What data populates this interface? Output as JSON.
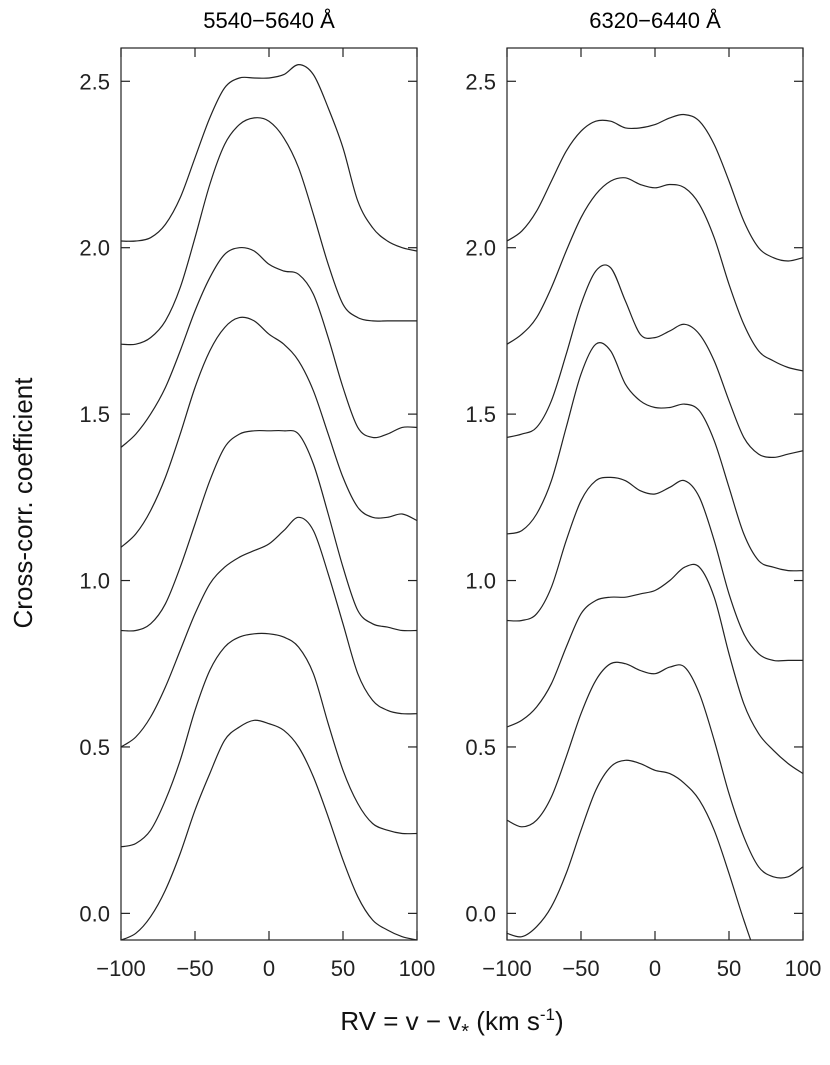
{
  "chart_data": [
    {
      "type": "line",
      "title": "5540−5640 Å",
      "xlabel": "RV = v − v",
      "xlabel_subscript": "*",
      "xlabel_unit_pre": " (km s",
      "xlabel_unit_exp": "-1",
      "xlabel_unit_post": ")",
      "ylabel": "Cross-corr. coefficient",
      "xlim": [
        -100,
        100
      ],
      "ylim": [
        -0.08,
        2.6
      ],
      "xticks": [
        -100,
        -50,
        0,
        50,
        100
      ],
      "xtick_labels": [
        "−100",
        "−50",
        "0",
        "50",
        "100"
      ],
      "yticks": [
        0.0,
        0.5,
        1.0,
        1.5,
        2.0,
        2.5
      ],
      "ytick_labels": [
        "0.0",
        "0.5",
        "1.0",
        "1.5",
        "2.0",
        "2.5"
      ],
      "grid": false,
      "series": [
        {
          "x": [
            -100,
            -90,
            -80,
            -70,
            -60,
            -50,
            -40,
            -30,
            -20,
            -10,
            0,
            10,
            20,
            30,
            40,
            50,
            60,
            70,
            80,
            90,
            100
          ],
          "y": [
            -0.08,
            -0.06,
            -0.01,
            0.07,
            0.18,
            0.31,
            0.42,
            0.52,
            0.56,
            0.58,
            0.57,
            0.55,
            0.5,
            0.41,
            0.29,
            0.16,
            0.05,
            -0.02,
            -0.05,
            -0.07,
            -0.08
          ]
        },
        {
          "x": [
            -100,
            -90,
            -80,
            -70,
            -60,
            -50,
            -40,
            -30,
            -20,
            -10,
            0,
            10,
            20,
            30,
            40,
            50,
            60,
            70,
            80,
            90,
            100
          ],
          "y": [
            0.2,
            0.21,
            0.25,
            0.34,
            0.46,
            0.61,
            0.73,
            0.8,
            0.83,
            0.84,
            0.84,
            0.83,
            0.8,
            0.72,
            0.57,
            0.43,
            0.33,
            0.27,
            0.25,
            0.24,
            0.24
          ]
        },
        {
          "x": [
            -100,
            -90,
            -80,
            -70,
            -60,
            -50,
            -40,
            -30,
            -20,
            -10,
            0,
            10,
            20,
            30,
            40,
            50,
            60,
            70,
            80,
            90,
            100
          ],
          "y": [
            0.5,
            0.53,
            0.59,
            0.68,
            0.79,
            0.9,
            0.99,
            1.04,
            1.07,
            1.09,
            1.11,
            1.15,
            1.19,
            1.15,
            1.02,
            0.87,
            0.72,
            0.64,
            0.61,
            0.6,
            0.6
          ]
        },
        {
          "x": [
            -100,
            -90,
            -80,
            -70,
            -60,
            -50,
            -40,
            -30,
            -20,
            -10,
            0,
            10,
            20,
            30,
            40,
            50,
            60,
            70,
            80,
            90,
            100
          ],
          "y": [
            0.85,
            0.85,
            0.87,
            0.93,
            1.04,
            1.17,
            1.3,
            1.4,
            1.44,
            1.45,
            1.45,
            1.45,
            1.44,
            1.35,
            1.2,
            1.04,
            0.91,
            0.87,
            0.86,
            0.85,
            0.85
          ]
        },
        {
          "x": [
            -100,
            -90,
            -80,
            -70,
            -60,
            -50,
            -40,
            -30,
            -20,
            -10,
            0,
            10,
            20,
            30,
            40,
            50,
            60,
            70,
            80,
            90,
            100
          ],
          "y": [
            1.1,
            1.14,
            1.21,
            1.31,
            1.44,
            1.58,
            1.69,
            1.76,
            1.79,
            1.78,
            1.74,
            1.71,
            1.66,
            1.57,
            1.44,
            1.31,
            1.22,
            1.19,
            1.19,
            1.2,
            1.18
          ]
        },
        {
          "x": [
            -100,
            -90,
            -80,
            -70,
            -60,
            -50,
            -40,
            -30,
            -20,
            -10,
            0,
            10,
            20,
            30,
            40,
            50,
            60,
            70,
            80,
            90,
            100
          ],
          "y": [
            1.4,
            1.44,
            1.5,
            1.58,
            1.69,
            1.81,
            1.91,
            1.98,
            2.0,
            1.99,
            1.95,
            1.93,
            1.92,
            1.86,
            1.73,
            1.58,
            1.46,
            1.43,
            1.44,
            1.46,
            1.46
          ]
        },
        {
          "x": [
            -100,
            -90,
            -80,
            -70,
            -60,
            -50,
            -40,
            -30,
            -20,
            -10,
            0,
            10,
            20,
            30,
            40,
            50,
            60,
            70,
            80,
            90,
            100
          ],
          "y": [
            1.71,
            1.71,
            1.73,
            1.78,
            1.88,
            2.03,
            2.19,
            2.31,
            2.37,
            2.39,
            2.38,
            2.33,
            2.24,
            2.1,
            1.95,
            1.83,
            1.79,
            1.78,
            1.78,
            1.78,
            1.78
          ]
        },
        {
          "x": [
            -100,
            -90,
            -80,
            -70,
            -60,
            -50,
            -40,
            -30,
            -20,
            -10,
            0,
            10,
            20,
            30,
            40,
            50,
            60,
            70,
            80,
            90,
            100
          ],
          "y": [
            2.02,
            2.02,
            2.03,
            2.07,
            2.15,
            2.27,
            2.39,
            2.48,
            2.51,
            2.51,
            2.51,
            2.52,
            2.55,
            2.52,
            2.42,
            2.3,
            2.14,
            2.06,
            2.02,
            2.0,
            1.99
          ]
        }
      ]
    },
    {
      "type": "line",
      "title": "6320−6440 Å",
      "xlim": [
        -100,
        100
      ],
      "ylim": [
        -0.08,
        2.6
      ],
      "xticks": [
        -100,
        -50,
        0,
        50,
        100
      ],
      "xtick_labels": [
        "−100",
        "−50",
        "0",
        "50",
        "100"
      ],
      "yticks": [
        0.0,
        0.5,
        1.0,
        1.5,
        2.0,
        2.5
      ],
      "ytick_labels": [
        "0.0",
        "0.5",
        "1.0",
        "1.5",
        "2.0",
        "2.5"
      ],
      "grid": false,
      "series": [
        {
          "x": [
            -100,
            -90,
            -80,
            -70,
            -60,
            -50,
            -40,
            -30,
            -20,
            -10,
            0,
            10,
            20,
            30,
            40,
            50,
            60,
            70,
            80
          ],
          "y": [
            -0.06,
            -0.07,
            -0.04,
            0.02,
            0.12,
            0.25,
            0.37,
            0.44,
            0.46,
            0.45,
            0.43,
            0.42,
            0.39,
            0.34,
            0.25,
            0.12,
            -0.02,
            -0.14,
            -0.2
          ]
        },
        {
          "x": [
            -100,
            -90,
            -80,
            -70,
            -60,
            -50,
            -40,
            -30,
            -20,
            -10,
            0,
            10,
            20,
            30,
            40,
            50,
            60,
            70,
            80,
            90,
            100
          ],
          "y": [
            0.28,
            0.26,
            0.28,
            0.35,
            0.47,
            0.6,
            0.7,
            0.75,
            0.75,
            0.73,
            0.72,
            0.74,
            0.74,
            0.66,
            0.52,
            0.36,
            0.23,
            0.14,
            0.11,
            0.11,
            0.14
          ]
        },
        {
          "x": [
            -100,
            -90,
            -80,
            -70,
            -60,
            -50,
            -40,
            -30,
            -20,
            -10,
            0,
            10,
            20,
            30,
            40,
            50,
            60,
            70,
            80,
            90,
            100
          ],
          "y": [
            0.56,
            0.58,
            0.62,
            0.69,
            0.8,
            0.9,
            0.94,
            0.95,
            0.95,
            0.96,
            0.97,
            1.0,
            1.04,
            1.04,
            0.95,
            0.78,
            0.63,
            0.54,
            0.49,
            0.45,
            0.42
          ]
        },
        {
          "x": [
            -100,
            -90,
            -80,
            -70,
            -60,
            -50,
            -40,
            -30,
            -20,
            -10,
            0,
            10,
            20,
            30,
            40,
            50,
            60,
            70,
            80,
            90,
            100
          ],
          "y": [
            0.88,
            0.88,
            0.9,
            0.98,
            1.12,
            1.24,
            1.3,
            1.31,
            1.3,
            1.27,
            1.26,
            1.28,
            1.3,
            1.25,
            1.12,
            0.96,
            0.84,
            0.78,
            0.76,
            0.76,
            0.76
          ]
        },
        {
          "x": [
            -100,
            -90,
            -80,
            -70,
            -60,
            -50,
            -40,
            -30,
            -20,
            -10,
            0,
            10,
            20,
            30,
            40,
            50,
            60,
            70,
            80,
            90,
            100
          ],
          "y": [
            1.14,
            1.15,
            1.2,
            1.3,
            1.46,
            1.62,
            1.71,
            1.69,
            1.59,
            1.54,
            1.52,
            1.52,
            1.53,
            1.51,
            1.42,
            1.28,
            1.14,
            1.06,
            1.04,
            1.03,
            1.03
          ]
        },
        {
          "x": [
            -100,
            -90,
            -80,
            -70,
            -60,
            -50,
            -40,
            -30,
            -20,
            -10,
            0,
            10,
            20,
            30,
            40,
            50,
            60,
            70,
            80,
            90,
            100
          ],
          "y": [
            1.43,
            1.44,
            1.46,
            1.54,
            1.68,
            1.83,
            1.93,
            1.94,
            1.84,
            1.74,
            1.73,
            1.75,
            1.77,
            1.74,
            1.66,
            1.54,
            1.43,
            1.38,
            1.37,
            1.38,
            1.39
          ]
        },
        {
          "x": [
            -100,
            -90,
            -80,
            -70,
            -60,
            -50,
            -40,
            -30,
            -20,
            -10,
            0,
            10,
            20,
            30,
            40,
            50,
            60,
            70,
            80,
            90,
            100
          ],
          "y": [
            1.71,
            1.74,
            1.79,
            1.88,
            1.99,
            2.09,
            2.16,
            2.2,
            2.21,
            2.19,
            2.18,
            2.19,
            2.18,
            2.13,
            2.03,
            1.89,
            1.77,
            1.69,
            1.66,
            1.64,
            1.63
          ]
        },
        {
          "x": [
            -100,
            -90,
            -80,
            -70,
            -60,
            -50,
            -40,
            -30,
            -20,
            -10,
            0,
            10,
            20,
            30,
            40,
            50,
            60,
            70,
            80,
            90,
            100
          ],
          "y": [
            2.02,
            2.05,
            2.11,
            2.2,
            2.29,
            2.35,
            2.38,
            2.38,
            2.36,
            2.36,
            2.37,
            2.39,
            2.4,
            2.38,
            2.31,
            2.2,
            2.08,
            2.0,
            1.97,
            1.96,
            1.97
          ]
        }
      ]
    }
  ]
}
